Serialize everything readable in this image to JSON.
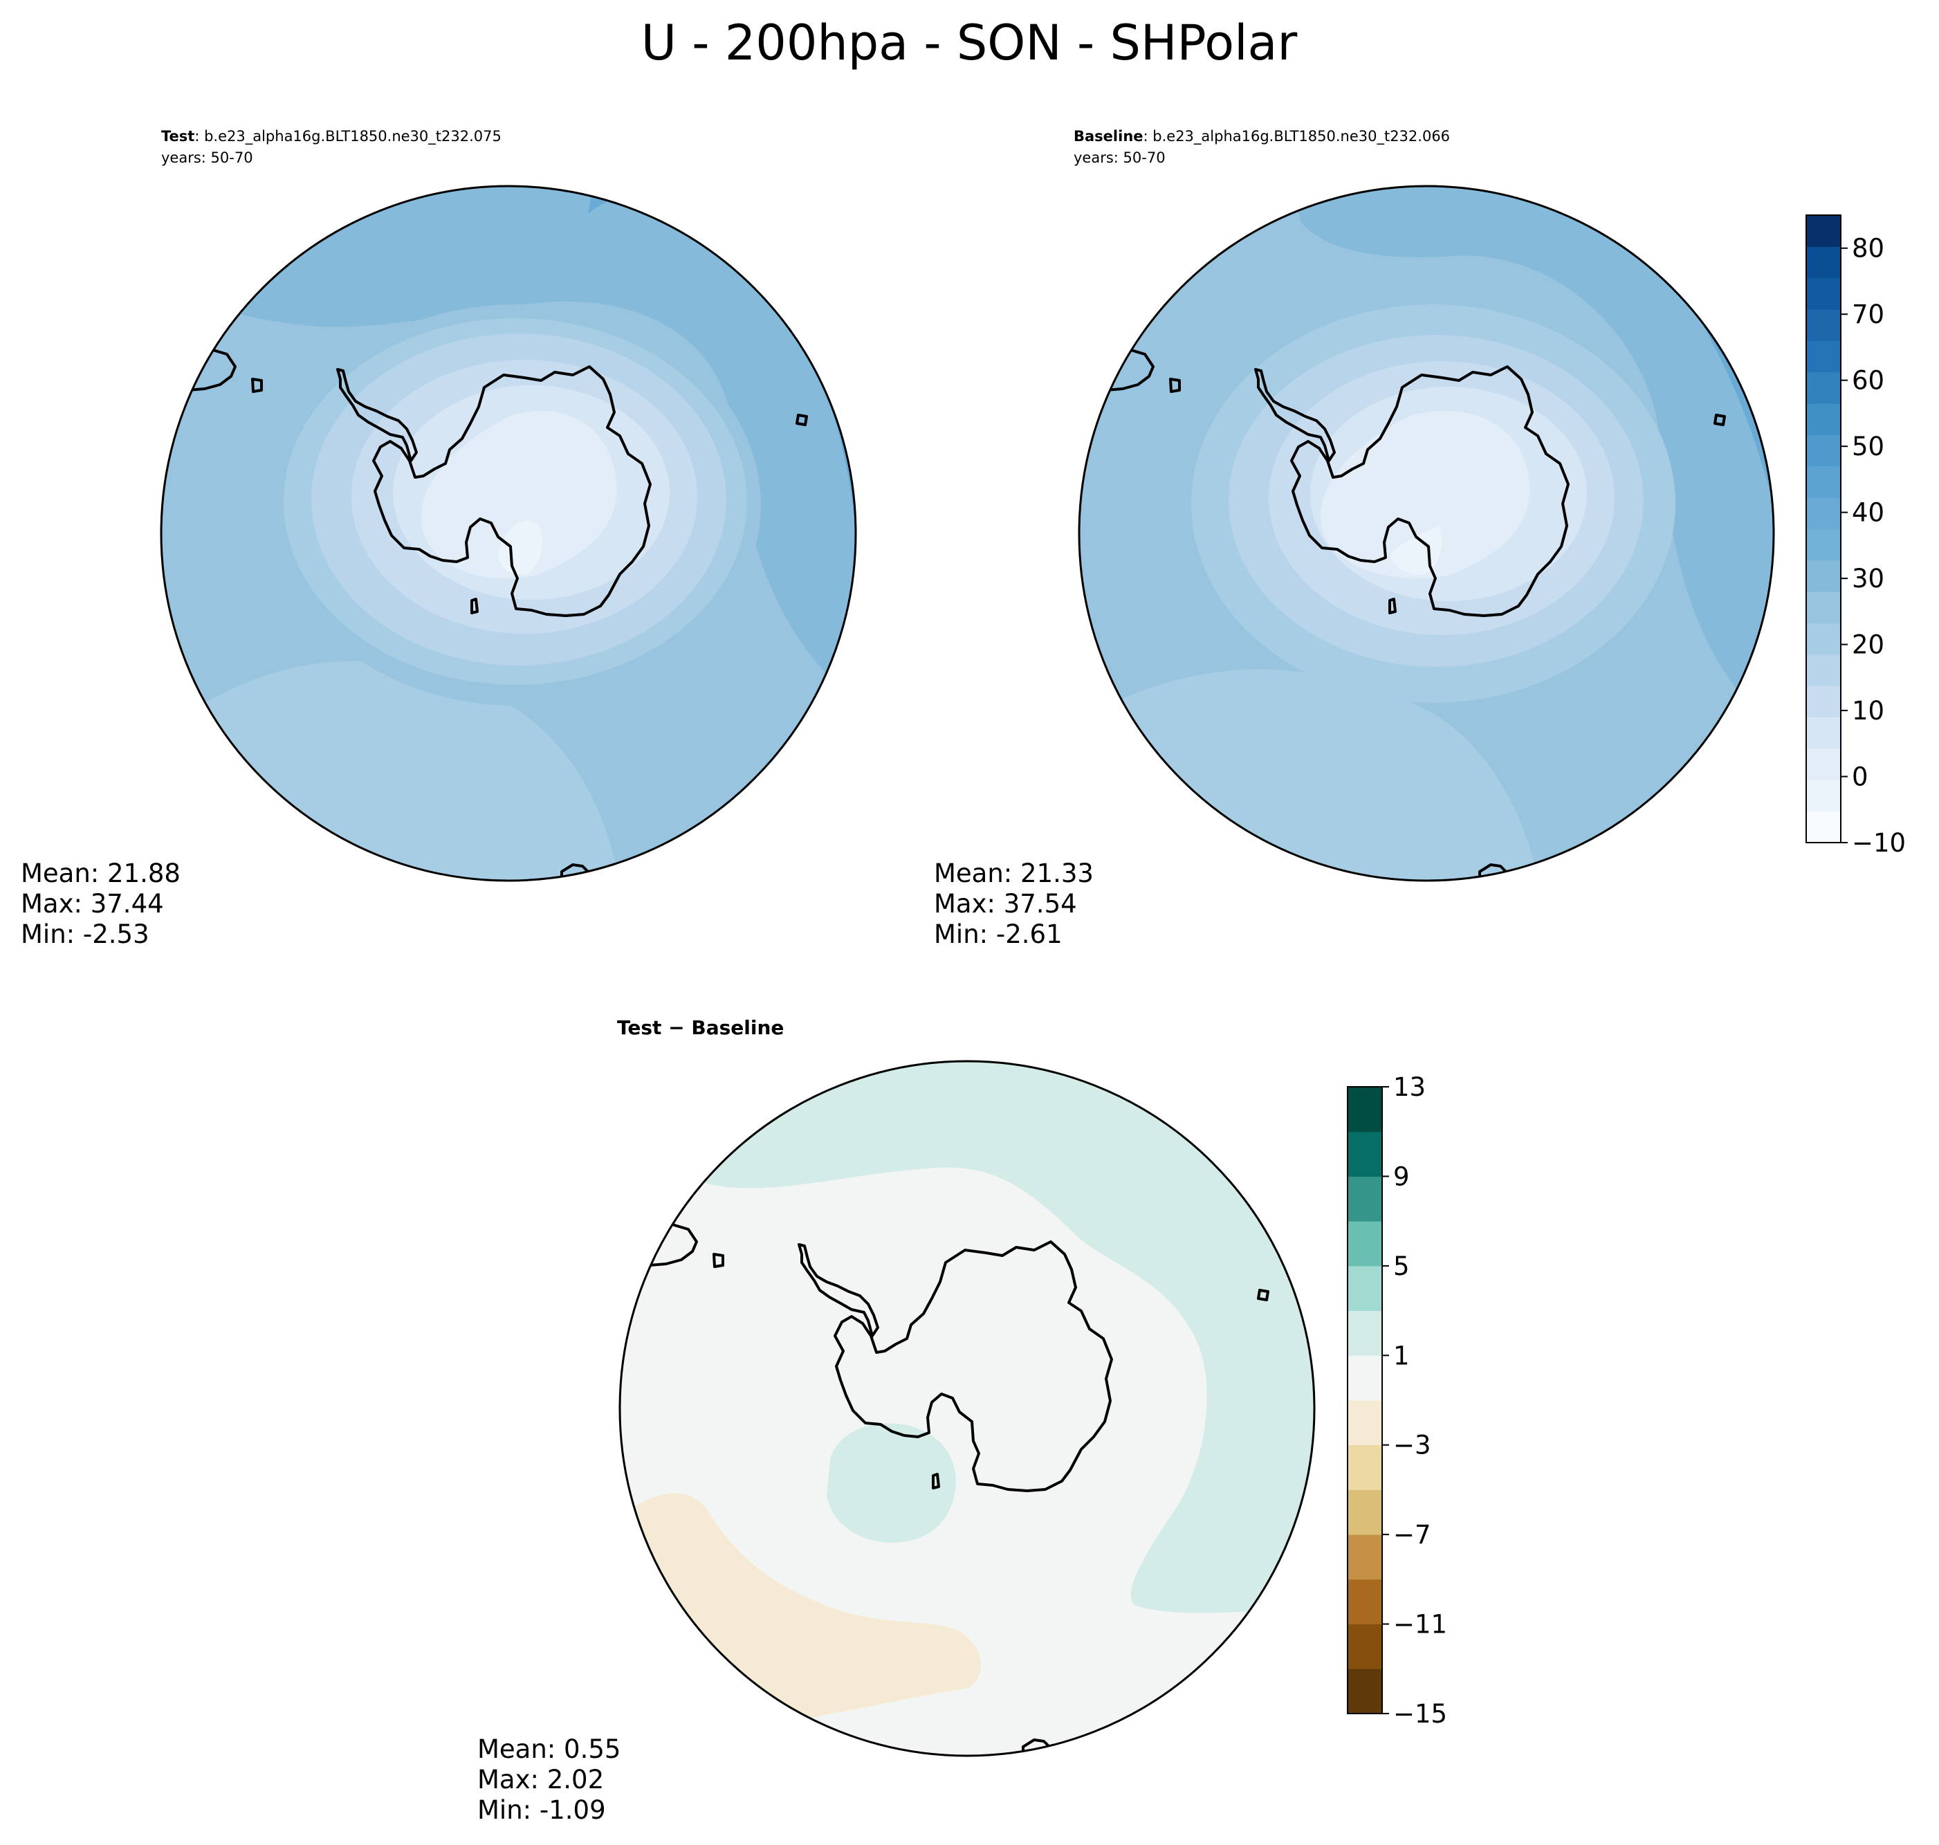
{
  "figure": {
    "title": "U - 200hpa - SON - SHPolar"
  },
  "chart_data": [
    {
      "type": "heatmap",
      "panel": "test",
      "projection": "south-polar-stereographic",
      "label_bold": "Test",
      "label_rest": ": b.e23_alpha16g.BLT1850.ne30_t232.075",
      "years": "years: 50-70",
      "stats": {
        "mean": "Mean: 21.88",
        "max": "Max: 37.44",
        "min": "Min: -2.53"
      },
      "field_zones": [
        {
          "level": 0,
          "color": "#e2edf8"
        },
        {
          "level": 5,
          "color": "#d6e6f4"
        },
        {
          "level": 10,
          "color": "#c8dcf0"
        },
        {
          "level": 15,
          "color": "#b7d4ea"
        },
        {
          "level": 20,
          "color": "#a6cde3"
        },
        {
          "level": 25,
          "color": "#98c4df"
        },
        {
          "level": 30,
          "color": "#86badb"
        },
        {
          "level": 35,
          "color": "#69abd5"
        }
      ]
    },
    {
      "type": "heatmap",
      "panel": "baseline",
      "projection": "south-polar-stereographic",
      "label_bold": "Baseline",
      "label_rest": ": b.e23_alpha16g.BLT1850.ne30_t232.066",
      "years": "years: 50-70",
      "stats": {
        "mean": "Mean: 21.33",
        "max": "Max: 37.54",
        "min": "Min: -2.61"
      },
      "colorbar": {
        "ticks": [
          80,
          70,
          60,
          50,
          40,
          30,
          20,
          10,
          0,
          "−10"
        ],
        "range": [
          -10,
          85
        ],
        "colors": [
          "#f7fbff",
          "#ebf3fb",
          "#e2edf8",
          "#d6e6f4",
          "#c8dcf0",
          "#b7d4ea",
          "#a6cde3",
          "#98c4df",
          "#86badb",
          "#73b2d8",
          "#69abd5",
          "#5da3d1",
          "#4f99cc",
          "#4090c5",
          "#3282bd",
          "#2574b6",
          "#1c68aa",
          "#115ca1",
          "#0a4f94",
          "#08306b"
        ]
      }
    },
    {
      "type": "heatmap",
      "panel": "difference",
      "projection": "south-polar-stereographic",
      "label_bold": "Test − Baseline",
      "stats": {
        "mean": "Mean:  0.55",
        "max": "Max:  2.02",
        "min": "Min: -1.09"
      },
      "colorbar": {
        "ticks": [
          13,
          9,
          5,
          1,
          "−3",
          "−7",
          "−11",
          "−15"
        ],
        "range": [
          -15,
          13
        ],
        "colors": [
          "#5e3a0a",
          "#84500c",
          "#a86a1e",
          "#c59147",
          "#dbbf78",
          "#ecd9a4",
          "#f5ebd5",
          "#f3f5f4",
          "#d3ece8",
          "#a1dad0",
          "#6abfb3",
          "#35958a",
          "#066e65",
          "#024d42"
        ]
      },
      "field_zones": [
        {
          "level": 1,
          "color": "#d3ece8"
        },
        {
          "level": 0,
          "color": "#f3f5f4"
        },
        {
          "level": -1,
          "color": "#f5ebd5"
        }
      ]
    }
  ]
}
